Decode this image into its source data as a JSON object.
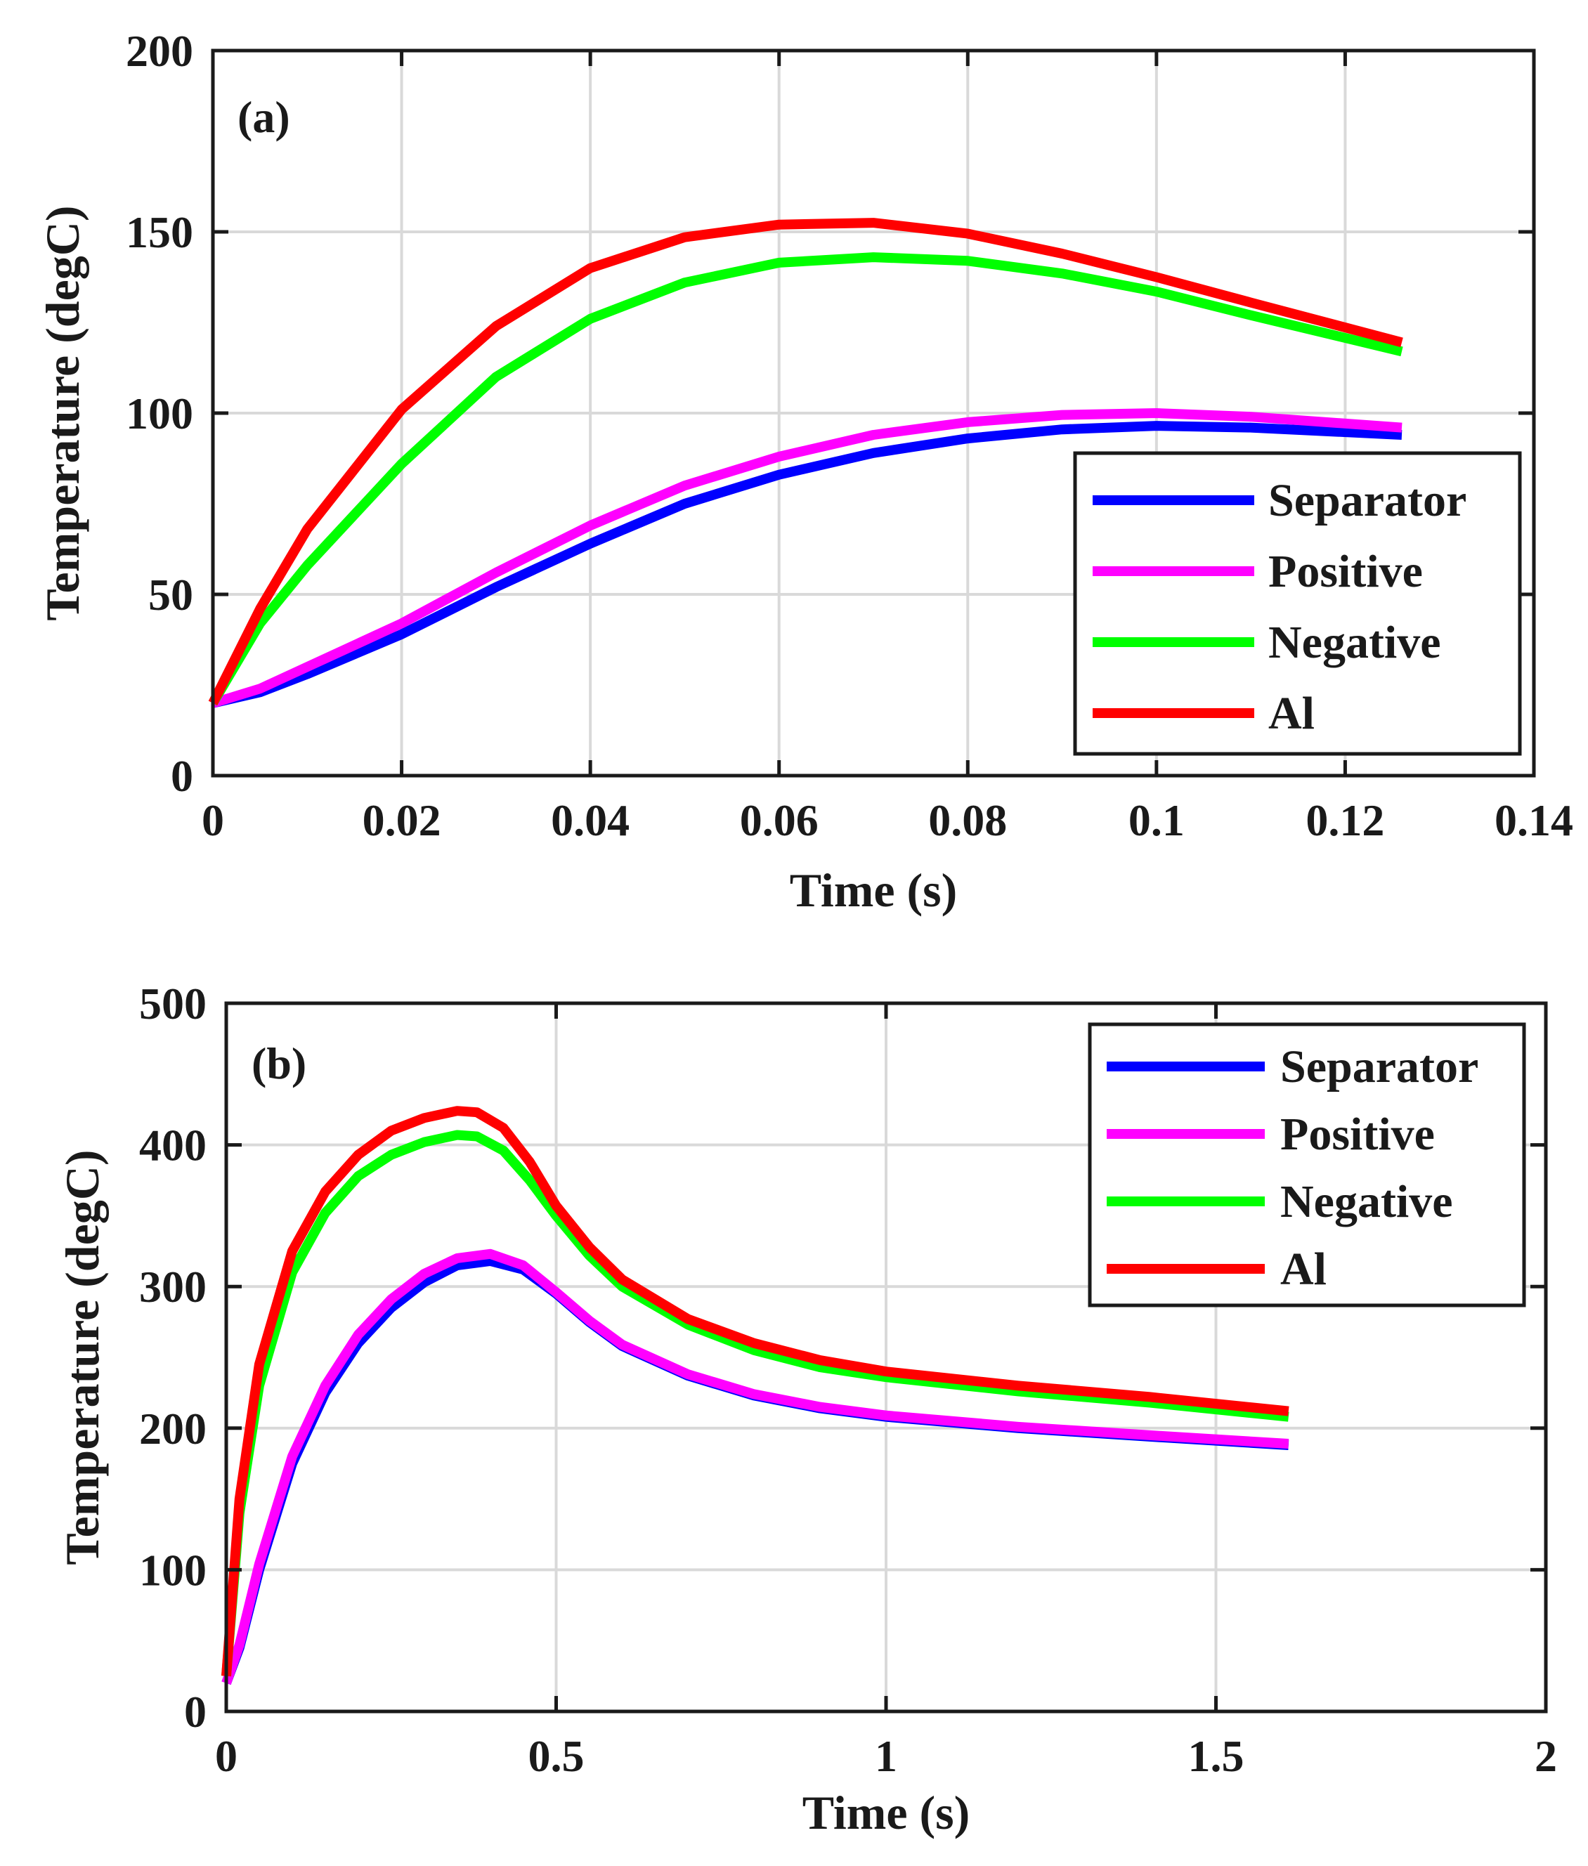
{
  "chart_data": [
    {
      "id": "a",
      "type": "line",
      "panel_label": "(a)",
      "xlabel": "Time (s)",
      "ylabel": "Temperature (degC)",
      "xlim": [
        0,
        0.14
      ],
      "ylim": [
        0,
        200
      ],
      "xticks": [
        0,
        0.02,
        0.04,
        0.06,
        0.08,
        0.1,
        0.12,
        0.14
      ],
      "xtick_labels": [
        "0",
        "0.02",
        "0.04",
        "0.06",
        "0.08",
        "0.1",
        "0.12",
        "0.14"
      ],
      "yticks": [
        0,
        50,
        100,
        150,
        200
      ],
      "ytick_labels": [
        "0",
        "50",
        "100",
        "150",
        "200"
      ],
      "grid": true,
      "legend_position": "bottom-right",
      "series": [
        {
          "name": "Separator",
          "color": "#0000ff",
          "x": [
            0,
            0.005,
            0.01,
            0.02,
            0.03,
            0.04,
            0.05,
            0.06,
            0.07,
            0.08,
            0.09,
            0.1,
            0.11,
            0.126
          ],
          "y": [
            20,
            23,
            28,
            39,
            52,
            64,
            75,
            83,
            89,
            93,
            95.5,
            96.5,
            96,
            94
          ]
        },
        {
          "name": "Positive",
          "color": "#ff00ff",
          "x": [
            0,
            0.005,
            0.01,
            0.02,
            0.03,
            0.04,
            0.05,
            0.06,
            0.07,
            0.08,
            0.09,
            0.1,
            0.11,
            0.126
          ],
          "y": [
            20,
            24,
            30,
            42,
            56,
            69,
            80,
            88,
            94,
            97.5,
            99.5,
            100,
            99,
            96
          ]
        },
        {
          "name": "Negative",
          "color": "#00ff00",
          "x": [
            0,
            0.005,
            0.01,
            0.02,
            0.03,
            0.04,
            0.05,
            0.06,
            0.07,
            0.08,
            0.09,
            0.1,
            0.11,
            0.126
          ],
          "y": [
            20,
            42,
            58,
            86,
            110,
            126,
            136,
            141.5,
            143,
            142,
            138.5,
            133.5,
            127,
            117
          ]
        },
        {
          "name": "Al",
          "color": "#ff0000",
          "x": [
            0,
            0.005,
            0.01,
            0.02,
            0.03,
            0.04,
            0.05,
            0.06,
            0.07,
            0.08,
            0.09,
            0.1,
            0.11,
            0.126
          ],
          "y": [
            20,
            46,
            68,
            101,
            124,
            140,
            148.5,
            152,
            152.5,
            149.5,
            144,
            137.5,
            130.5,
            119.5
          ]
        }
      ]
    },
    {
      "id": "b",
      "type": "line",
      "panel_label": "(b)",
      "xlabel": "Time (s)",
      "ylabel": "Temperature (degC)",
      "xlim": [
        0,
        2
      ],
      "ylim": [
        0,
        500
      ],
      "xticks": [
        0,
        0.5,
        1,
        1.5,
        2
      ],
      "xtick_labels": [
        "0",
        "0.5",
        "1",
        "1.5",
        "2"
      ],
      "yticks": [
        0,
        100,
        200,
        300,
        400,
        500
      ],
      "ytick_labels": [
        "0",
        "100",
        "200",
        "300",
        "400",
        "500"
      ],
      "grid": true,
      "legend_position": "top-right",
      "series": [
        {
          "name": "Separator",
          "color": "#0000ff",
          "x": [
            0,
            0.02,
            0.05,
            0.1,
            0.15,
            0.2,
            0.25,
            0.3,
            0.35,
            0.4,
            0.45,
            0.5,
            0.55,
            0.6,
            0.7,
            0.8,
            0.9,
            1.0,
            1.2,
            1.4,
            1.61
          ],
          "y": [
            20,
            45,
            100,
            175,
            225,
            260,
            285,
            303,
            315,
            318,
            312,
            295,
            275,
            258,
            237,
            223,
            214,
            208,
            200,
            194,
            188
          ]
        },
        {
          "name": "Positive",
          "color": "#ff00ff",
          "x": [
            0,
            0.02,
            0.05,
            0.1,
            0.15,
            0.2,
            0.25,
            0.3,
            0.35,
            0.4,
            0.45,
            0.5,
            0.55,
            0.6,
            0.7,
            0.8,
            0.9,
            1.0,
            1.2,
            1.4,
            1.61
          ],
          "y": [
            20,
            47,
            104,
            180,
            230,
            266,
            291,
            309,
            320,
            323,
            315,
            296,
            276,
            259,
            238,
            224,
            215,
            209,
            201,
            195,
            189
          ]
        },
        {
          "name": "Negative",
          "color": "#00ff00",
          "x": [
            0,
            0.02,
            0.05,
            0.1,
            0.15,
            0.2,
            0.25,
            0.3,
            0.35,
            0.38,
            0.42,
            0.46,
            0.5,
            0.55,
            0.6,
            0.7,
            0.8,
            0.9,
            1.0,
            1.2,
            1.4,
            1.61
          ],
          "y": [
            25,
            140,
            230,
            310,
            352,
            378,
            393,
            402,
            407,
            406,
            396,
            375,
            350,
            322,
            300,
            273,
            255,
            243,
            236,
            226,
            218,
            208
          ]
        },
        {
          "name": "Al",
          "color": "#ff0000",
          "x": [
            0,
            0.02,
            0.05,
            0.1,
            0.15,
            0.2,
            0.25,
            0.3,
            0.35,
            0.38,
            0.42,
            0.46,
            0.5,
            0.55,
            0.6,
            0.7,
            0.8,
            0.9,
            1.0,
            1.2,
            1.4,
            1.61
          ],
          "y": [
            25,
            150,
            245,
            325,
            367,
            393,
            410,
            419,
            424,
            423,
            412,
            388,
            357,
            328,
            305,
            277,
            260,
            248,
            240,
            230,
            222,
            212
          ]
        }
      ]
    }
  ]
}
